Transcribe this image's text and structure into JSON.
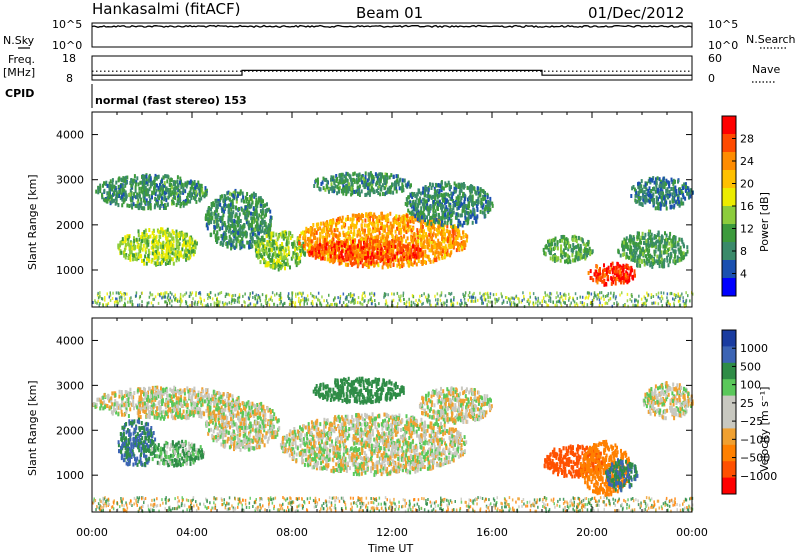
{
  "header": {
    "station": "Hankasalmi (fitACF)",
    "beam": "Beam 01",
    "date": "01/Dec/2012"
  },
  "panels": {
    "noise": {
      "left_label": "N.Sky",
      "right_label": "N.Search",
      "left_ticks": [
        "10^5",
        "10^0"
      ],
      "right_ticks": [
        "10^5",
        "10^0"
      ]
    },
    "freq": {
      "left_label_line1": "Freq.",
      "left_label_line2": "[MHz]",
      "left_ticks": [
        "18",
        "8"
      ],
      "right_label": "Nave",
      "right_ticks": [
        "60",
        "0"
      ]
    },
    "cpid": {
      "label": "CPID",
      "text": "normal (fast stereo) 153"
    }
  },
  "colorbars": {
    "power": {
      "label": "Power [dB]",
      "ticks": [
        "28",
        "24",
        "20",
        "16",
        "12",
        "8",
        "4"
      ],
      "colors": [
        "#ff0000",
        "#ff4a00",
        "#ff8c00",
        "#ffc000",
        "#ecec00",
        "#8ccc3c",
        "#3c9a3c",
        "#3a8a6a",
        "#1a50b0",
        "#0000ff"
      ]
    },
    "velocity": {
      "label": "Velocity [m s⁻¹]",
      "ticks": [
        "1000",
        "500",
        "100",
        "25",
        "−25",
        "−100",
        "−500",
        "−1000"
      ],
      "colors": [
        "#1a3ca0",
        "#3c64b4",
        "#2e8c46",
        "#5ac85a",
        "#c8c8c0",
        "#c8c8c0",
        "#f0a030",
        "#ff8000",
        "#ff5000",
        "#ff0000"
      ]
    }
  },
  "axes": {
    "ylabel": "Slant Range [km]",
    "xlabel": "Time UT",
    "x_ticks": [
      "00:00",
      "04:00",
      "08:00",
      "12:00",
      "16:00",
      "20:00",
      "00:00"
    ],
    "y_ticks": [
      "4000",
      "3000",
      "2000",
      "1000"
    ]
  },
  "chart_data": [
    {
      "type": "heatmap",
      "name": "power",
      "xlabel": "Time UT",
      "ylabel": "Slant Range [km]",
      "colorbar_label": "Power [dB]",
      "xlim_hours": [
        0,
        24
      ],
      "ylim_km": [
        180,
        4500
      ],
      "blobs": [
        {
          "t0": 0.1,
          "t1": 4.6,
          "r0": 2400,
          "r1": 3150,
          "value": 8
        },
        {
          "t0": 1.0,
          "t1": 4.2,
          "r0": 1150,
          "r1": 1950,
          "value": 14
        },
        {
          "t0": 4.5,
          "t1": 7.2,
          "r0": 1500,
          "r1": 2800,
          "value": 8
        },
        {
          "t0": 6.5,
          "t1": 8.5,
          "r0": 1050,
          "r1": 1900,
          "value": 13
        },
        {
          "t0": 8.2,
          "t1": 15.0,
          "r0": 1100,
          "r1": 2300,
          "value": 22
        },
        {
          "t0": 8.5,
          "t1": 13.3,
          "r0": 1200,
          "r1": 1700,
          "value": 27
        },
        {
          "t0": 8.8,
          "t1": 12.8,
          "r0": 2700,
          "r1": 3200,
          "value": 8
        },
        {
          "t0": 12.5,
          "t1": 16.0,
          "r0": 2000,
          "r1": 3000,
          "value": 7
        },
        {
          "t0": 18.0,
          "t1": 20.0,
          "r0": 1200,
          "r1": 1800,
          "value": 10
        },
        {
          "t0": 19.8,
          "t1": 21.7,
          "r0": 700,
          "r1": 1200,
          "value": 28
        },
        {
          "t0": 21.0,
          "t1": 23.8,
          "r0": 1100,
          "r1": 1900,
          "value": 9
        },
        {
          "t0": 21.5,
          "t1": 24.0,
          "r0": 2400,
          "r1": 3100,
          "value": 6
        }
      ]
    },
    {
      "type": "heatmap",
      "name": "velocity",
      "xlabel": "Time UT",
      "ylabel": "Slant Range [km]",
      "colorbar_label": "Velocity [m s⁻¹]",
      "xlim_hours": [
        0,
        24
      ],
      "ylim_km": [
        180,
        4500
      ],
      "blobs": [
        {
          "t0": 0.0,
          "t1": 6.0,
          "r0": 2300,
          "r1": 3000,
          "value": 0
        },
        {
          "t0": 4.5,
          "t1": 7.5,
          "r0": 1600,
          "r1": 2700,
          "value": 0
        },
        {
          "t0": 7.5,
          "t1": 15.0,
          "r0": 1050,
          "r1": 2400,
          "value": 0
        },
        {
          "t0": 13.0,
          "t1": 16.0,
          "r0": 2200,
          "r1": 3000,
          "value": 0
        },
        {
          "t0": 8.8,
          "t1": 12.5,
          "r0": 2650,
          "r1": 3200,
          "value": 200
        },
        {
          "t0": 1.0,
          "t1": 2.5,
          "r0": 1200,
          "r1": 2300,
          "value": 300
        },
        {
          "t0": 2.2,
          "t1": 4.5,
          "r0": 1250,
          "r1": 1800,
          "value": 60
        },
        {
          "t0": 18.0,
          "t1": 20.5,
          "r0": 1000,
          "r1": 1700,
          "value": -800
        },
        {
          "t0": 19.5,
          "t1": 21.5,
          "r0": 600,
          "r1": 1800,
          "value": -300
        },
        {
          "t0": 20.5,
          "t1": 21.8,
          "r0": 700,
          "r1": 1400,
          "value": 300
        },
        {
          "t0": 22.0,
          "t1": 24.0,
          "r0": 2300,
          "r1": 3100,
          "value": 0
        }
      ]
    }
  ],
  "line_data": {
    "noise_sky": {
      "hours": [
        0,
        24
      ],
      "level_log10": 4.3
    },
    "noise_search": {
      "hours": [
        0,
        24
      ],
      "level_log10": 4.5
    },
    "freq_mhz": {
      "segments": [
        {
          "t0": 0,
          "t1": 6.0,
          "value": 10
        },
        {
          "t0": 6.0,
          "t1": 18.0,
          "value": 12
        },
        {
          "t0": 18.0,
          "t1": 24,
          "value": 10
        }
      ],
      "ylim": [
        8,
        18
      ]
    },
    "nave": {
      "hours": [
        0,
        24
      ],
      "value": 22,
      "ylim": [
        0,
        60
      ]
    }
  }
}
